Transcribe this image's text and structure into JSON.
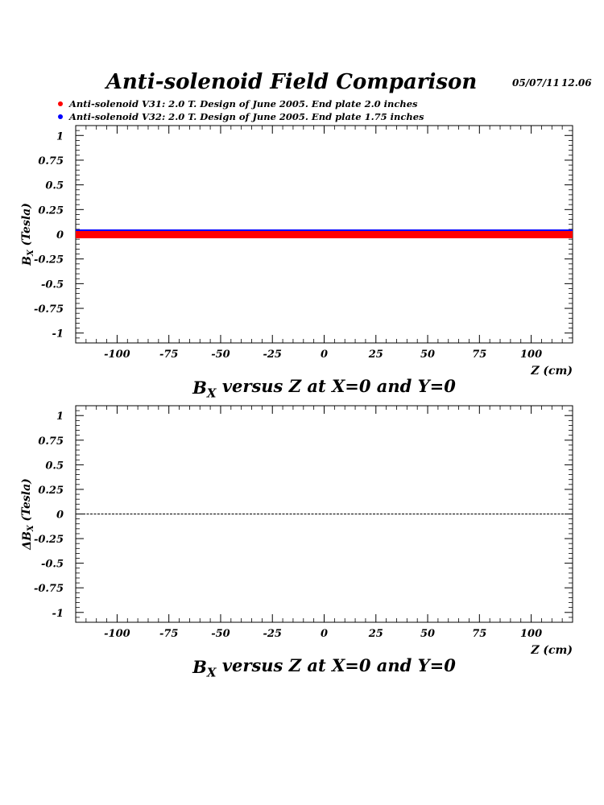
{
  "header": {
    "title": "Anti-solenoid Field Comparison",
    "date": "05/07/11",
    "time": "12.06"
  },
  "legend": [
    {
      "label": "Anti-solenoid V31: 2.0 T. Design of June 2005. End plate 2.0 inches",
      "color": "#ff0000"
    },
    {
      "label": "Anti-solenoid V32: 2.0 T. Design of June 2005. End plate 1.75 inches",
      "color": "#0000ff"
    }
  ],
  "chart_data": [
    {
      "type": "line",
      "xlabel": "Z (cm)",
      "ylabel": "B_X (Tesla)",
      "caption": "B_X versus Z at X=0 and Y=0",
      "xlim": [
        -120,
        120
      ],
      "ylim": [
        -1.1,
        1.1
      ],
      "xticks": [
        "-100",
        "-75",
        "-50",
        "-25",
        "0",
        "25",
        "50",
        "75",
        "100"
      ],
      "yticks": [
        "1",
        "0.75",
        "0.5",
        "0.25",
        "0",
        "-0.25",
        "-0.5",
        "-0.75",
        "-1"
      ],
      "x": [
        -120,
        -100,
        -75,
        -50,
        -25,
        0,
        25,
        50,
        75,
        100,
        120
      ],
      "series": [
        {
          "name": "Anti-solenoid V31: 2.0 T. Design of June 2005. End plate 2.0 inches",
          "color": "#ff0000",
          "values": [
            0,
            0,
            0,
            0,
            0,
            0,
            0,
            0,
            0,
            0,
            0
          ]
        },
        {
          "name": "Anti-solenoid V32: 2.0 T. Design of June 2005. End plate 1.75 inches",
          "color": "#0000ff",
          "values": [
            0,
            0,
            0,
            0,
            0,
            0,
            0,
            0,
            0,
            0,
            0
          ]
        }
      ]
    },
    {
      "type": "line",
      "xlabel": "Z (cm)",
      "ylabel": "ΔB_X (Tesla)",
      "caption": "B_X versus Z at X=0 and Y=0",
      "xlim": [
        -120,
        120
      ],
      "ylim": [
        -1.1,
        1.1
      ],
      "xticks": [
        "-100",
        "-75",
        "-50",
        "-25",
        "0",
        "25",
        "50",
        "75",
        "100"
      ],
      "yticks": [
        "1",
        "0.75",
        "0.5",
        "0.25",
        "0",
        "-0.25",
        "-0.5",
        "-0.75",
        "-1"
      ],
      "x": [
        -120,
        -100,
        -75,
        -50,
        -25,
        0,
        25,
        50,
        75,
        100,
        120
      ],
      "series": [
        {
          "color": "#000000",
          "values": [
            0,
            0,
            0,
            0,
            0,
            0,
            0,
            0,
            0,
            0,
            0
          ]
        }
      ]
    }
  ]
}
